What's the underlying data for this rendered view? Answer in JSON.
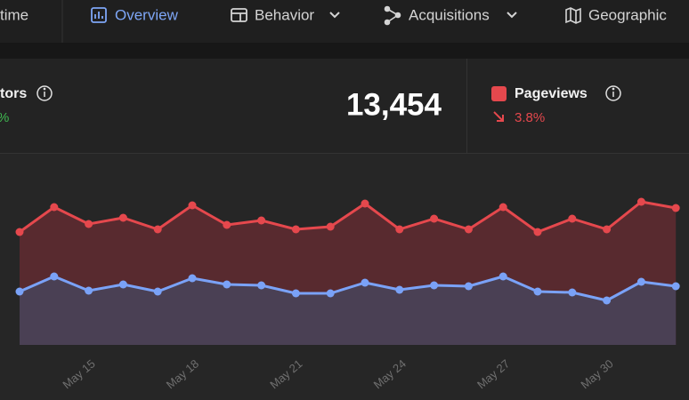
{
  "nav": {
    "tabs": [
      {
        "label": "time"
      },
      {
        "label": "Overview"
      },
      {
        "label": "Behavior"
      },
      {
        "label": "Acquisitions"
      },
      {
        "label": "Geographic"
      }
    ]
  },
  "stats": [
    {
      "label": "tors",
      "change": "%"
    },
    {
      "value": "13,454"
    },
    {
      "label": "Pageviews",
      "change": "3.8%"
    }
  ],
  "chart_data": {
    "type": "area",
    "categories": [
      null,
      null,
      "May 15",
      null,
      null,
      "May 18",
      null,
      null,
      "May 21",
      null,
      null,
      "May 24",
      null,
      null,
      "May 27",
      null,
      null,
      "May 30",
      null,
      null
    ],
    "series": [
      {
        "color": "#e5484d",
        "fill": "#5b2a2f",
        "values": [
          127,
          155,
          136,
          143,
          130,
          157,
          135,
          140,
          130,
          133,
          159,
          130,
          142,
          130,
          155,
          127,
          142,
          130,
          161,
          154
        ]
      },
      {
        "color": "#7aa2f7",
        "fill": "#4a4156",
        "values": [
          60,
          77,
          61,
          68,
          60,
          75,
          68,
          67,
          58,
          58,
          70,
          62,
          67,
          66,
          77,
          60,
          59,
          50,
          71,
          66
        ]
      }
    ],
    "ylim": [
      0,
      200
    ]
  }
}
